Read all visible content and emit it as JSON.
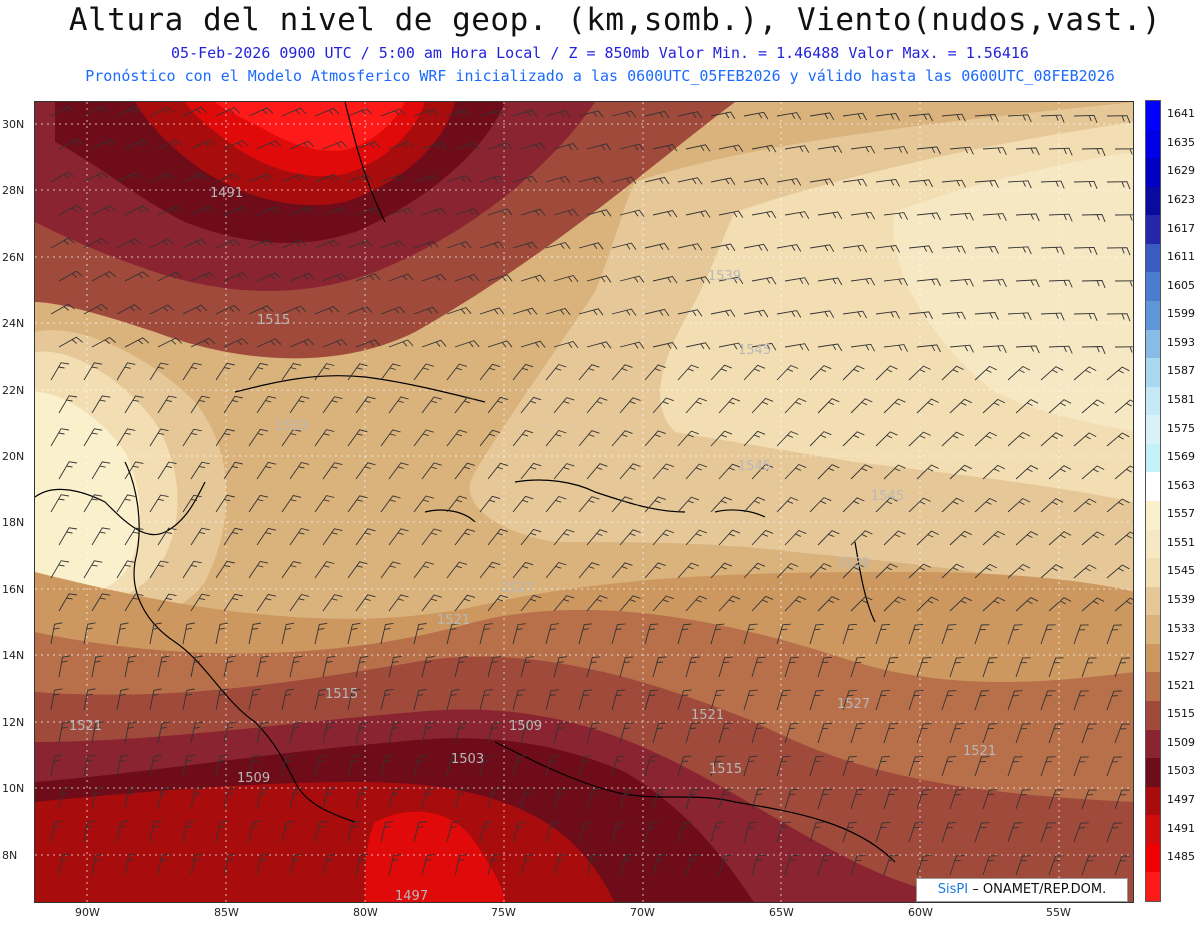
{
  "header": {
    "title": "Altura del nivel de geop. (km,somb.), Viento(nudos,vast.)",
    "subtitle1": "05-Feb-2026  0900 UTC / 5:00 am Hora Local / Z = 850mb     Valor Min. = 1.46488  Valor Max. = 1.56416",
    "subtitle2": "Pronóstico con el Modelo Atmosferico WRF inicializado a las 0600UTC_05FEB2026 y válido hasta las  0600UTC_08FEB2026"
  },
  "axes": {
    "lat_labels": [
      "30N",
      "28N",
      "26N",
      "24N",
      "22N",
      "20N",
      "18N",
      "16N",
      "14N",
      "12N",
      "10N",
      "8N"
    ],
    "lon_labels": [
      "90W",
      "85W",
      "80W",
      "75W",
      "70W",
      "65W",
      "60W",
      "55W"
    ]
  },
  "contour_labels": [
    "1491",
    "1515",
    "1539",
    "1545",
    "1533",
    "1545",
    "1545",
    "1539",
    "1527",
    "1521",
    "1515",
    "1509",
    "1503",
    "1521",
    "1515",
    "1509",
    "1521",
    "1521",
    "1527",
    "1497"
  ],
  "colorbar": [
    {
      "value": "1641",
      "color": "#0000ff"
    },
    {
      "value": "1635",
      "color": "#0000e6"
    },
    {
      "value": "1629",
      "color": "#0000c4"
    },
    {
      "value": "1623",
      "color": "#0a0a9e"
    },
    {
      "value": "1617",
      "color": "#2626a8"
    },
    {
      "value": "1611",
      "color": "#3a5cc0"
    },
    {
      "value": "1605",
      "color": "#4a7cd0"
    },
    {
      "value": "1599",
      "color": "#5e96d8"
    },
    {
      "value": "1593",
      "color": "#88bce6"
    },
    {
      "value": "1587",
      "color": "#aad8ef"
    },
    {
      "value": "1581",
      "color": "#c6eaf5"
    },
    {
      "value": "1575",
      "color": "#d8f2f8"
    },
    {
      "value": "1569",
      "color": "#c4f0f8"
    },
    {
      "value": "1563",
      "color": "#ffffff"
    },
    {
      "value": "1557",
      "color": "#fbf0cc"
    },
    {
      "value": "1551",
      "color": "#f7e8c4"
    },
    {
      "value": "1545",
      "color": "#f2deb2"
    },
    {
      "value": "1539",
      "color": "#e6c898"
    },
    {
      "value": "1533",
      "color": "#dab27c"
    },
    {
      "value": "1527",
      "color": "#cc9860"
    },
    {
      "value": "1521",
      "color": "#b8704a"
    },
    {
      "value": "1515",
      "color": "#a04a3c"
    },
    {
      "value": "1509",
      "color": "#8a2430"
    },
    {
      "value": "1503",
      "color": "#6e0c1a"
    },
    {
      "value": "1497",
      "color": "#a80c0c"
    },
    {
      "value": "1491",
      "color": "#d00c0c"
    },
    {
      "value": "1485",
      "color": "#f00000"
    },
    {
      "value": "",
      "color": "#ff1a1a"
    }
  ],
  "credit": {
    "brand": "SisPI",
    "text": " – ONAMET/REP.DOM."
  }
}
